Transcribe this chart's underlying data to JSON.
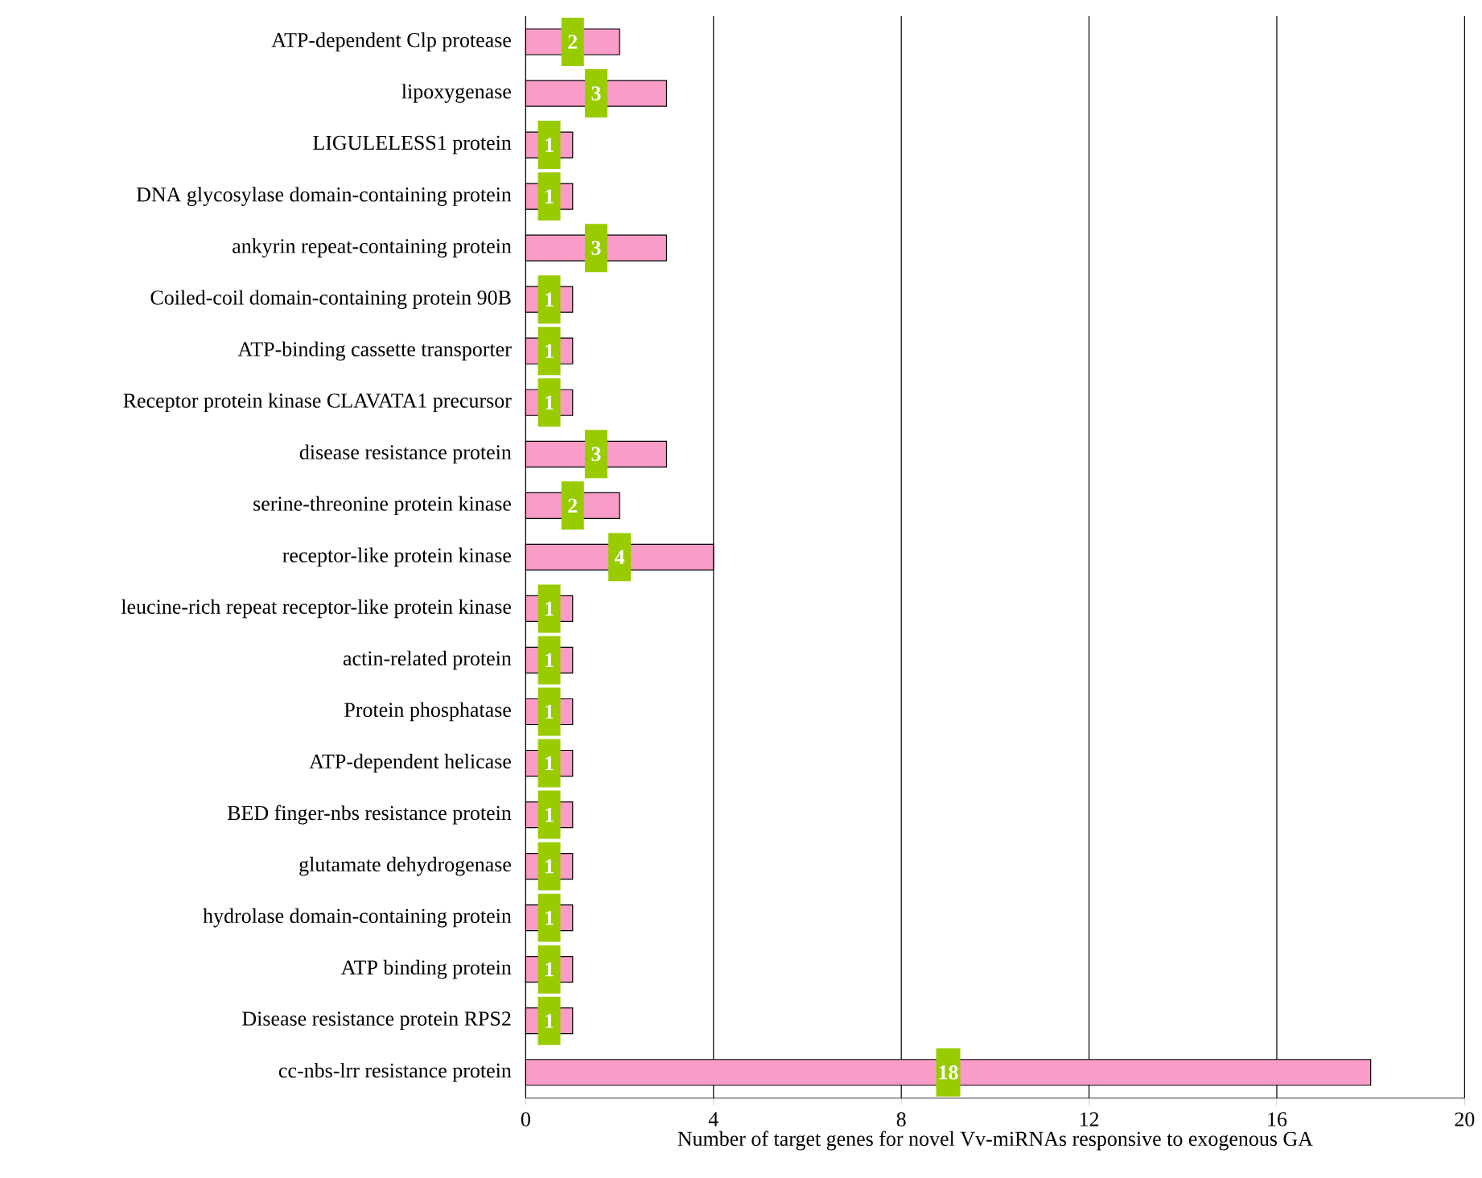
{
  "chart_data": {
    "type": "bar",
    "orientation": "horizontal",
    "xlabel": "Number of target genes for novel Vv-miRNAs responsive to exogenous GA",
    "categories": [
      "ATP-dependent Clp protease",
      "lipoxygenase",
      "LIGULELESS1 protein",
      "DNA glycosylase domain-containing protein",
      "ankyrin repeat-containing protein",
      "Coiled-coil domain-containing protein 90B",
      "ATP-binding cassette transporter",
      "Receptor protein kinase CLAVATA1 precursor",
      "disease resistance protein",
      "serine-threonine protein kinase",
      "receptor-like protein kinase",
      "leucine-rich repeat receptor-like protein kinase",
      "actin-related protein",
      "Protein phosphatase",
      "ATP-dependent helicase",
      "BED finger-nbs resistance protein",
      "glutamate dehydrogenase",
      "hydrolase domain-containing protein",
      "ATP binding protein",
      "Disease resistance protein RPS2",
      "cc-nbs-lrr resistance protein"
    ],
    "values": [
      2,
      3,
      1,
      1,
      3,
      1,
      1,
      1,
      3,
      2,
      4,
      1,
      1,
      1,
      1,
      1,
      1,
      1,
      1,
      1,
      18
    ],
    "color": "#f99cc8",
    "data_labels": true,
    "xlim": [
      0,
      20
    ],
    "xticks": [
      0,
      4,
      8,
      12,
      16,
      20
    ],
    "grid": "x"
  }
}
